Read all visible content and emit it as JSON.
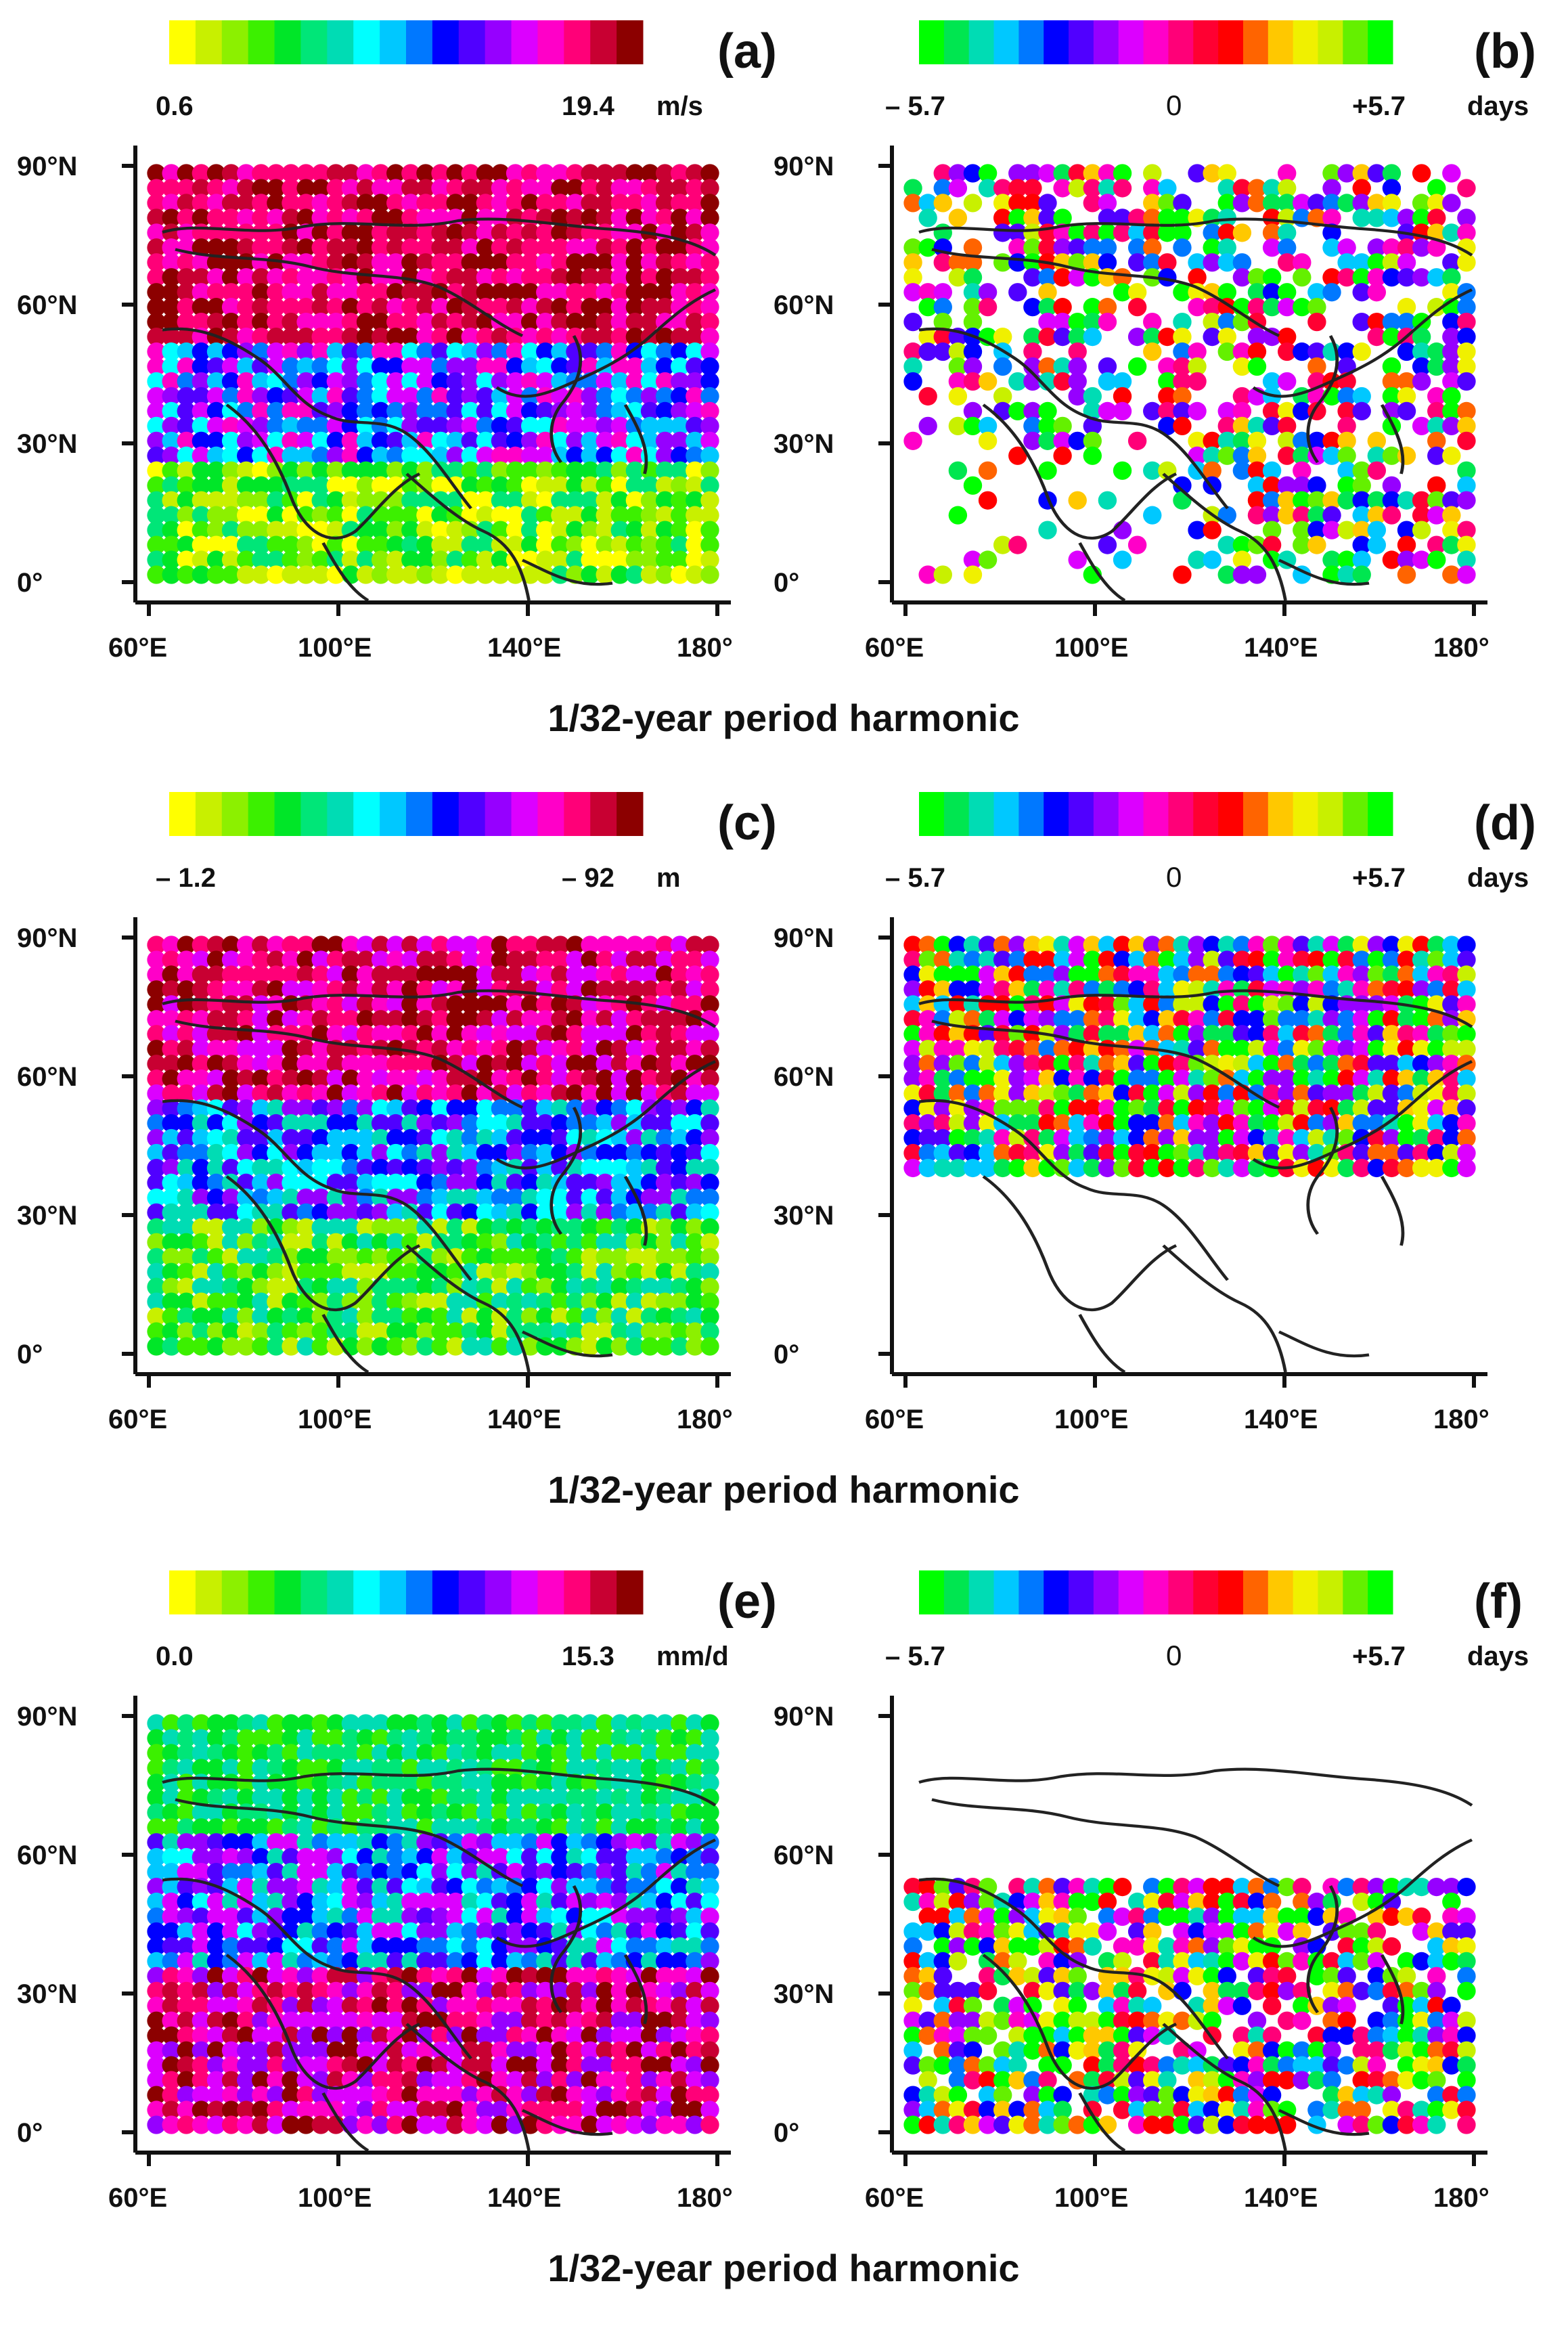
{
  "colormaps": {
    "magnitude": [
      "#ffff00",
      "#c8f000",
      "#8cf000",
      "#3cf000",
      "#00e628",
      "#00e678",
      "#00dcb4",
      "#00ffff",
      "#00c8ff",
      "#0078ff",
      "#0000ff",
      "#5000ff",
      "#9600ff",
      "#dc00ff",
      "#ff00c8",
      "#ff0078",
      "#c80032",
      "#8c0000"
    ],
    "phase": [
      "#00ff00",
      "#00e650",
      "#00dcb4",
      "#00c8ff",
      "#0078ff",
      "#0000ff",
      "#5000ff",
      "#9600ff",
      "#dc00ff",
      "#ff00c8",
      "#ff0078",
      "#ff0032",
      "#ff0000",
      "#ff6400",
      "#ffc800",
      "#f0f000",
      "#c8f000",
      "#64f000",
      "#00ff00"
    ]
  },
  "map_axes": {
    "x_ticks": [
      "60°E",
      "100°E",
      "140°E",
      "180°"
    ],
    "y_ticks": [
      "90°N",
      "60°N",
      "30°N",
      "0°"
    ],
    "xlim": [
      60,
      180
    ],
    "ylim": [
      0,
      90
    ]
  },
  "rows": [
    {
      "caption": "1/32-year period  harmonic"
    },
    {
      "caption": "1/32-year period  harmonic"
    },
    {
      "caption": "1/32-year period  harmonic"
    }
  ],
  "chart_data": [
    {
      "type": "heatmap",
      "panel_label": "(a)",
      "colormap": "magnitude",
      "colorbar": {
        "min_label": "0.6",
        "max_label": "19.4",
        "unit": "m/s"
      },
      "clim": [
        0.6,
        19.4
      ],
      "title": "",
      "xlabel": "",
      "ylabel": "",
      "xlim": [
        60,
        180
      ],
      "ylim": [
        0,
        90
      ]
    },
    {
      "type": "heatmap",
      "panel_label": "(b)",
      "colormap": "phase",
      "colorbar": {
        "min_label": "– 5.7",
        "mid_label": "0",
        "max_label": "+5.7",
        "unit": "days"
      },
      "clim": [
        -5.7,
        5.7
      ],
      "title": "",
      "xlabel": "",
      "ylabel": "",
      "xlim": [
        60,
        180
      ],
      "ylim": [
        0,
        90
      ]
    },
    {
      "type": "heatmap",
      "panel_label": "(c)",
      "colormap": "magnitude",
      "colorbar": {
        "min_label": "– 1.2",
        "max_label": "–  92",
        "unit": "m"
      },
      "clim": [
        -1.2,
        -92
      ],
      "title": "",
      "xlabel": "",
      "ylabel": "",
      "xlim": [
        60,
        180
      ],
      "ylim": [
        0,
        90
      ]
    },
    {
      "type": "heatmap",
      "panel_label": "(d)",
      "colormap": "phase",
      "colorbar": {
        "min_label": "– 5.7",
        "mid_label": "0",
        "max_label": "+5.7",
        "unit": "days"
      },
      "clim": [
        -5.7,
        5.7
      ],
      "title": "",
      "xlabel": "",
      "ylabel": "",
      "xlim": [
        60,
        180
      ],
      "ylim": [
        0,
        90
      ]
    },
    {
      "type": "heatmap",
      "panel_label": "(e)",
      "colormap": "magnitude",
      "colorbar": {
        "min_label": "0.0",
        "max_label": "15.3",
        "unit": "mm/d"
      },
      "clim": [
        0.0,
        15.3
      ],
      "title": "",
      "xlabel": "",
      "ylabel": "",
      "xlim": [
        60,
        180
      ],
      "ylim": [
        0,
        90
      ]
    },
    {
      "type": "heatmap",
      "panel_label": "(f)",
      "colormap": "phase",
      "colorbar": {
        "min_label": "– 5.7",
        "mid_label": "0",
        "max_label": "+5.7",
        "unit": "days"
      },
      "clim": [
        -5.7,
        5.7
      ],
      "title": "",
      "xlabel": "",
      "ylabel": "",
      "xlim": [
        60,
        180
      ],
      "ylim": [
        0,
        90
      ]
    }
  ]
}
